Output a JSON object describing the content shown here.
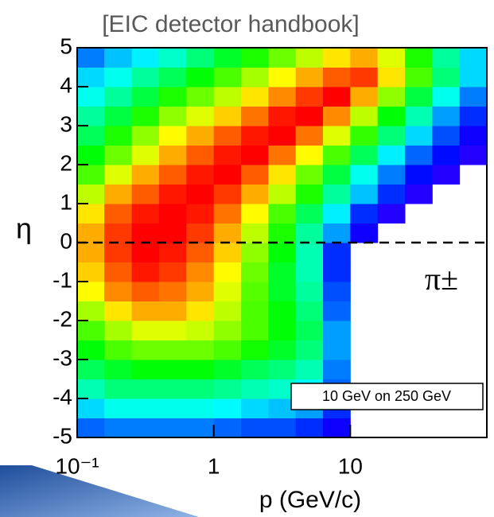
{
  "chart_data": {
    "type": "heatmap",
    "title": "[EIC detector handbook]",
    "x_label": "p (GeV/c)",
    "y_label": "η",
    "xlim": [
      0.1,
      100
    ],
    "ylim": [
      -5,
      5
    ],
    "x_log": true,
    "xticks": [
      {
        "value": 0.1,
        "label": "10⁻¹"
      },
      1,
      10
    ],
    "yticks": [
      -5,
      -4,
      -3,
      -2,
      -1,
      0,
      1,
      2,
      3,
      4,
      5
    ],
    "x_bins": [
      0.1,
      0.158,
      0.251,
      0.398,
      0.631,
      1,
      1.585,
      2.512,
      3.981,
      6.31,
      10,
      15.85,
      25.12,
      39.81,
      63.1,
      100
    ],
    "y_bins": [
      -5,
      -4.5,
      -4,
      -3.5,
      -3,
      -2.5,
      -2,
      -1.5,
      -1,
      -0.5,
      0,
      0.5,
      1,
      1.5,
      2,
      2.5,
      3,
      3.5,
      4,
      4.5,
      5
    ],
    "zlim": [
      0,
      100
    ],
    "colormap": "rainbow",
    "z": [
      [
        20,
        22,
        22,
        22,
        22,
        20,
        18,
        18,
        15,
        10,
        null,
        null,
        null,
        null,
        null
      ],
      [
        30,
        35,
        35,
        35,
        35,
        33,
        30,
        28,
        25,
        15,
        null,
        null,
        null,
        null,
        null
      ],
      [
        40,
        45,
        45,
        45,
        45,
        43,
        40,
        38,
        33,
        20,
        null,
        null,
        null,
        null,
        null
      ],
      [
        48,
        52,
        55,
        55,
        55,
        52,
        48,
        45,
        40,
        22,
        null,
        null,
        null,
        null,
        null
      ],
      [
        55,
        62,
        65,
        65,
        65,
        62,
        57,
        52,
        45,
        25,
        null,
        null,
        null,
        null,
        null
      ],
      [
        62,
        70,
        75,
        75,
        73,
        68,
        62,
        55,
        48,
        25,
        null,
        null,
        null,
        null,
        null
      ],
      [
        70,
        80,
        85,
        85,
        80,
        72,
        62,
        55,
        45,
        20,
        null,
        null,
        null,
        null,
        null
      ],
      [
        78,
        88,
        92,
        90,
        85,
        75,
        63,
        52,
        42,
        18,
        null,
        null,
        null,
        null,
        null
      ],
      [
        82,
        92,
        98,
        95,
        88,
        78,
        65,
        52,
        40,
        15,
        null,
        null,
        null,
        null,
        null
      ],
      [
        85,
        95,
        100,
        98,
        92,
        82,
        68,
        55,
        40,
        15,
        null,
        null,
        null,
        null,
        null
      ],
      [
        85,
        95,
        100,
        100,
        95,
        85,
        72,
        58,
        42,
        25,
        10,
        null,
        null,
        null,
        null
      ],
      [
        80,
        92,
        98,
        100,
        98,
        90,
        78,
        62,
        48,
        32,
        15,
        8,
        null,
        null,
        null
      ],
      [
        72,
        85,
        92,
        98,
        100,
        95,
        85,
        72,
        58,
        42,
        28,
        15,
        8,
        null,
        null
      ],
      [
        62,
        75,
        85,
        92,
        98,
        100,
        92,
        80,
        65,
        50,
        35,
        22,
        12,
        8,
        null
      ],
      [
        55,
        65,
        75,
        85,
        92,
        98,
        100,
        90,
        78,
        62,
        48,
        32,
        20,
        12,
        8
      ],
      [
        48,
        58,
        68,
        78,
        85,
        92,
        98,
        100,
        90,
        75,
        60,
        45,
        30,
        18,
        10
      ],
      [
        42,
        50,
        58,
        68,
        75,
        82,
        90,
        98,
        100,
        88,
        72,
        55,
        40,
        25,
        15
      ],
      [
        35,
        42,
        50,
        58,
        65,
        72,
        80,
        88,
        95,
        100,
        85,
        68,
        50,
        35,
        22
      ],
      [
        30,
        35,
        42,
        48,
        55,
        62,
        70,
        78,
        85,
        92,
        95,
        80,
        62,
        45,
        30
      ],
      [
        22,
        28,
        32,
        38,
        45,
        52,
        58,
        65,
        72,
        80,
        85,
        75,
        58,
        42,
        30
      ]
    ],
    "reference_line": 0,
    "annotations": [
      "π±",
      "10 GeV on 250 GeV"
    ]
  }
}
